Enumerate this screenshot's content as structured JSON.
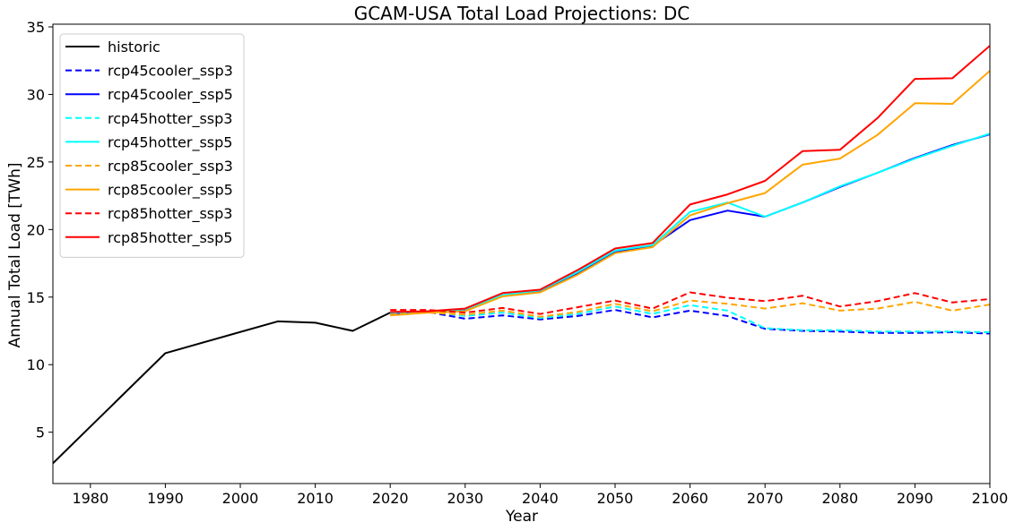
{
  "chart_data": {
    "type": "line",
    "title": "GCAM-USA Total Load Projections: DC",
    "xlabel": "Year",
    "ylabel": "Annual Total Load [TWh]",
    "xlim": [
      1975,
      2100
    ],
    "ylim": [
      1.2,
      35.2
    ],
    "xticks": [
      1980,
      1990,
      2000,
      2010,
      2020,
      2030,
      2040,
      2050,
      2060,
      2070,
      2080,
      2090,
      2100
    ],
    "yticks": [
      5,
      10,
      15,
      20,
      25,
      30,
      35
    ],
    "grid": false,
    "legend_position": "top-left",
    "series": [
      {
        "name": "historic",
        "color": "#000000",
        "dash": "solid",
        "x": [
          1975,
          1990,
          2005,
          2010,
          2015,
          2020
        ],
        "y": [
          2.7,
          10.85,
          13.2,
          13.1,
          12.5,
          13.85
        ]
      },
      {
        "name": "rcp45cooler_ssp3",
        "color": "#0000ff",
        "dash": "dashed",
        "x": [
          2020,
          2025,
          2030,
          2035,
          2040,
          2045,
          2050,
          2055,
          2060,
          2065,
          2070,
          2075,
          2080,
          2085,
          2090,
          2095,
          2100
        ],
        "y": [
          13.8,
          13.9,
          13.4,
          13.65,
          13.35,
          13.6,
          14.05,
          13.5,
          14.0,
          13.6,
          12.65,
          12.5,
          12.45,
          12.35,
          12.35,
          12.4,
          12.3
        ]
      },
      {
        "name": "rcp45cooler_ssp5",
        "color": "#0000ff",
        "dash": "solid",
        "x": [
          2020,
          2025,
          2030,
          2035,
          2040,
          2045,
          2050,
          2055,
          2060,
          2065,
          2070,
          2075,
          2080,
          2085,
          2090,
          2095,
          2100
        ],
        "y": [
          13.8,
          13.9,
          14.05,
          15.1,
          15.45,
          16.75,
          18.3,
          18.8,
          20.7,
          21.4,
          20.95,
          22.0,
          23.15,
          24.2,
          25.3,
          26.25,
          27.05
        ]
      },
      {
        "name": "rcp45hotter_ssp3",
        "color": "#00ffff",
        "dash": "dashed",
        "x": [
          2020,
          2025,
          2030,
          2035,
          2040,
          2045,
          2050,
          2055,
          2060,
          2065,
          2070,
          2075,
          2080,
          2085,
          2090,
          2095,
          2100
        ],
        "y": [
          13.85,
          13.95,
          13.6,
          13.85,
          13.45,
          13.75,
          14.3,
          13.75,
          14.4,
          14.0,
          12.7,
          12.55,
          12.55,
          12.45,
          12.45,
          12.45,
          12.4
        ]
      },
      {
        "name": "rcp45hotter_ssp5",
        "color": "#00ffff",
        "dash": "solid",
        "x": [
          2020,
          2025,
          2030,
          2035,
          2040,
          2045,
          2050,
          2055,
          2060,
          2065,
          2070,
          2075,
          2080,
          2085,
          2090,
          2095,
          2100
        ],
        "y": [
          13.85,
          13.95,
          14.1,
          15.15,
          15.5,
          16.85,
          18.45,
          18.85,
          21.3,
          22.0,
          20.95,
          22.0,
          23.2,
          24.2,
          25.25,
          26.2,
          27.1
        ]
      },
      {
        "name": "rcp85cooler_ssp3",
        "color": "#ffa500",
        "dash": "dashed",
        "x": [
          2020,
          2025,
          2030,
          2035,
          2040,
          2045,
          2050,
          2055,
          2060,
          2065,
          2070,
          2075,
          2080,
          2085,
          2090,
          2095,
          2100
        ],
        "y": [
          13.7,
          13.85,
          13.7,
          14.0,
          13.55,
          13.9,
          14.5,
          13.95,
          14.75,
          14.5,
          14.15,
          14.55,
          14.0,
          14.15,
          14.65,
          14.0,
          14.45
        ]
      },
      {
        "name": "rcp85cooler_ssp5",
        "color": "#ffa500",
        "dash": "solid",
        "x": [
          2020,
          2025,
          2030,
          2035,
          2040,
          2045,
          2050,
          2055,
          2060,
          2065,
          2070,
          2075,
          2080,
          2085,
          2090,
          2095,
          2100
        ],
        "y": [
          13.65,
          13.85,
          13.95,
          15.05,
          15.35,
          16.65,
          18.25,
          18.7,
          21.05,
          21.95,
          22.7,
          24.8,
          25.25,
          27.0,
          29.35,
          29.3,
          31.75
        ]
      },
      {
        "name": "rcp85hotter_ssp3",
        "color": "#ff0000",
        "dash": "dashed",
        "x": [
          2020,
          2025,
          2030,
          2035,
          2040,
          2045,
          2050,
          2055,
          2060,
          2065,
          2070,
          2075,
          2080,
          2085,
          2090,
          2095,
          2100
        ],
        "y": [
          14.05,
          14.05,
          13.85,
          14.2,
          13.75,
          14.25,
          14.75,
          14.15,
          15.35,
          14.95,
          14.7,
          15.1,
          14.3,
          14.7,
          15.3,
          14.6,
          14.85
        ]
      },
      {
        "name": "rcp85hotter_ssp5",
        "color": "#ff0000",
        "dash": "solid",
        "x": [
          2020,
          2025,
          2030,
          2035,
          2040,
          2045,
          2050,
          2055,
          2060,
          2065,
          2070,
          2075,
          2080,
          2085,
          2090,
          2095,
          2100
        ],
        "y": [
          13.9,
          13.95,
          14.15,
          15.3,
          15.55,
          17.0,
          18.6,
          19.0,
          21.85,
          22.6,
          23.6,
          25.8,
          25.9,
          28.25,
          31.15,
          31.2,
          33.6
        ]
      }
    ]
  }
}
